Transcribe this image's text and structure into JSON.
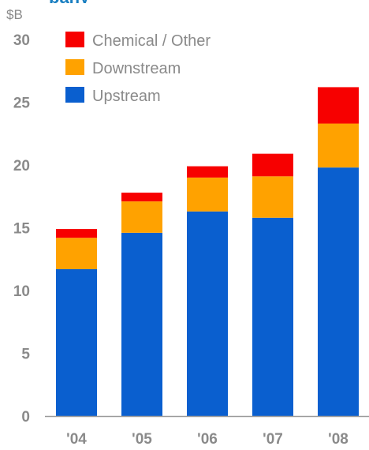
{
  "chart_data": {
    "type": "bar",
    "stacked": true,
    "title_fragment": "pany",
    "ylabel": "$B",
    "categories": [
      "'04",
      "'05",
      "'06",
      "'07",
      "'08"
    ],
    "ylim": [
      0,
      30
    ],
    "yticks": [
      0,
      5,
      10,
      15,
      20,
      25,
      30
    ],
    "grid": false,
    "legend_placement": "top-left",
    "series": [
      {
        "name": "Upstream",
        "color": "#0a5fcf",
        "values": [
          11.7,
          14.6,
          16.3,
          15.8,
          19.8
        ]
      },
      {
        "name": "Downstream",
        "color": "#ffa200",
        "values": [
          2.5,
          2.5,
          2.7,
          3.3,
          3.5
        ]
      },
      {
        "name": "Chemical / Other",
        "color": "#f70000",
        "values": [
          0.7,
          0.7,
          0.9,
          1.8,
          2.9
        ]
      }
    ]
  }
}
